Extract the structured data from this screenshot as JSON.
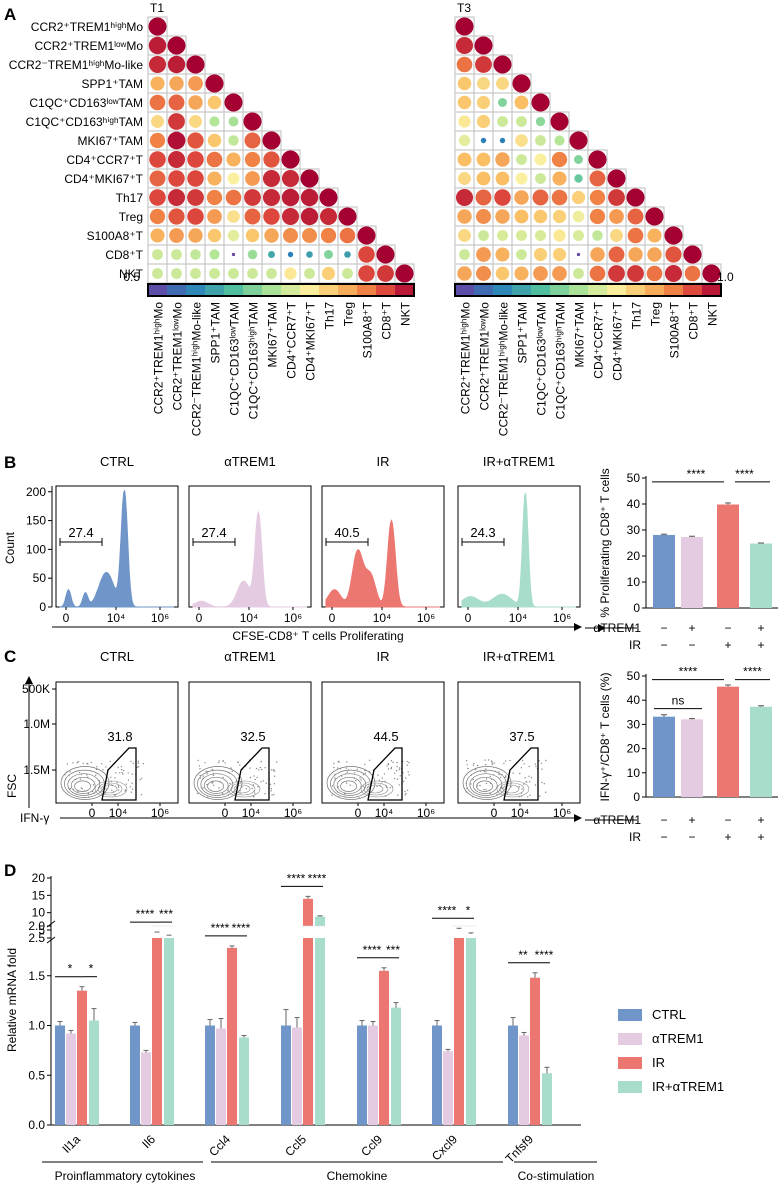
{
  "panel_letters": {
    "A": "A",
    "B": "B",
    "C": "C",
    "D": "D"
  },
  "colors": {
    "blue": "#6f95c9",
    "lilac": "#e4cbe2",
    "red": "#ec7670",
    "mint": "#a8dccb",
    "sig_mark": "#000000"
  },
  "group_labels": [
    "CTRL",
    "αTREM1",
    "IR",
    "IR+αTREM1"
  ],
  "chart_data": [
    {
      "id": "A-T1",
      "type": "heatmap",
      "title": "T1",
      "labels": [
        "CCR2⁺TREM1ʰⁱᵍʰMo",
        "CCR2⁺TREM1ˡᵒʷMo",
        "CCR2⁻TREM1ʰⁱᵍʰMo-like",
        "SPP1⁺TAM",
        "C1QC⁺CD163ˡᵒʷTAM",
        "C1QC⁺CD163ʰⁱᵍʰTAM",
        "MKI67⁺TAM",
        "CD4⁺CCR7⁺T",
        "CD4⁺MKI67⁺T",
        "Th17",
        "Treg",
        "S100A8⁺T",
        "CD8⁺T",
        "NKT"
      ],
      "colorbar_min_label": "0.5",
      "values": [
        [
          1.0
        ],
        [
          0.98,
          1.0
        ],
        [
          0.97,
          0.98,
          1.0
        ],
        [
          0.87,
          0.88,
          0.89,
          1.0
        ],
        [
          0.92,
          0.93,
          0.88,
          0.85,
          1.0
        ],
        [
          0.83,
          0.96,
          0.83,
          0.74,
          0.73,
          1.0
        ],
        [
          0.91,
          0.99,
          0.94,
          0.85,
          0.75,
          0.93,
          1.0
        ],
        [
          0.95,
          0.97,
          0.95,
          0.92,
          0.87,
          0.91,
          0.94,
          1.0
        ],
        [
          0.93,
          0.95,
          0.95,
          0.87,
          0.8,
          0.89,
          0.97,
          0.97,
          1.0
        ],
        [
          0.95,
          0.97,
          0.96,
          0.91,
          0.92,
          0.96,
          0.97,
          0.98,
          0.98,
          1.0
        ],
        [
          0.91,
          0.94,
          0.95,
          0.89,
          0.82,
          0.93,
          0.95,
          0.97,
          0.98,
          0.97,
          1.0
        ],
        [
          0.87,
          0.89,
          0.88,
          0.85,
          0.78,
          0.85,
          0.88,
          0.9,
          0.9,
          0.91,
          0.92,
          1.0
        ],
        [
          0.76,
          0.76,
          0.75,
          0.74,
          0.51,
          0.72,
          0.63,
          0.58,
          0.62,
          0.7,
          0.62,
          0.95,
          1.0
        ],
        [
          0.76,
          0.76,
          0.76,
          0.76,
          0.76,
          0.76,
          0.76,
          0.81,
          0.76,
          0.84,
          0.76,
          0.95,
          0.96,
          1.0
        ]
      ]
    },
    {
      "id": "A-T3",
      "type": "heatmap",
      "title": "T3",
      "labels": [
        "CCR2⁺TREM1ʰⁱᵍʰMo",
        "CCR2⁺TREM1ˡᵒʷMo",
        "CCR2⁻TREM1ʰⁱᵍʰMo-like",
        "SPP1⁺TAM",
        "C1QC⁺CD163ˡᵒʷTAM",
        "C1QC⁺CD163ʰⁱᵍʰTAM",
        "MKI67⁺TAM",
        "CD4⁺CCR7⁺T",
        "CD4⁺MKI67⁺T",
        "Th17",
        "Treg",
        "S100A8⁺T",
        "CD8⁺T",
        "NKT"
      ],
      "colorbar_max_label": "1.0",
      "values": [
        [
          1.0
        ],
        [
          0.97,
          1.0
        ],
        [
          0.92,
          0.96,
          1.0
        ],
        [
          0.85,
          0.83,
          0.83,
          1.0
        ],
        [
          0.85,
          0.84,
          0.7,
          0.86,
          1.0
        ],
        [
          0.81,
          0.84,
          0.76,
          0.76,
          0.71,
          1.0
        ],
        [
          0.78,
          0.58,
          0.58,
          0.82,
          0.76,
          0.74,
          1.0
        ],
        [
          0.86,
          0.86,
          0.88,
          0.76,
          0.8,
          0.91,
          0.7,
          1.0
        ],
        [
          0.83,
          0.86,
          0.86,
          0.8,
          0.76,
          0.87,
          0.68,
          0.93,
          1.0
        ],
        [
          0.97,
          0.93,
          0.95,
          0.88,
          0.93,
          0.92,
          0.84,
          0.91,
          0.96,
          1.0
        ],
        [
          0.88,
          0.9,
          0.88,
          0.86,
          0.85,
          0.84,
          0.79,
          0.91,
          0.89,
          0.93,
          1.0
        ],
        [
          0.83,
          0.76,
          0.77,
          0.77,
          0.77,
          0.81,
          0.77,
          0.75,
          0.83,
          0.92,
          0.87,
          1.0
        ],
        [
          0.76,
          0.89,
          0.87,
          0.76,
          0.84,
          0.84,
          0.51,
          0.88,
          0.93,
          0.88,
          0.88,
          0.94,
          1.0
        ],
        [
          0.88,
          0.9,
          0.85,
          0.87,
          0.89,
          0.89,
          0.76,
          0.92,
          0.96,
          0.96,
          0.92,
          0.97,
          0.92,
          1.0
        ]
      ]
    },
    {
      "id": "B-hist",
      "type": "area",
      "xlabel": "CFSE-CD8⁺ T cells Proliferating",
      "ylabel": "Count",
      "y_ticks": [
        "0",
        "50",
        "100",
        "150",
        "200"
      ],
      "ylim": [
        0,
        210
      ],
      "x_ticks": [
        "0",
        "10⁴",
        "10⁶"
      ],
      "series": [
        {
          "name": "CTRL",
          "gate_value": "27.4",
          "color": "#6f95c9",
          "peaks": [
            [
              1,
              30,
              0.12
            ],
            [
              1.8,
              24,
              0.12
            ],
            [
              3.65,
              200,
              0.15
            ],
            [
              2.8,
              60,
              0.35
            ]
          ]
        },
        {
          "name": "αTREM1",
          "gate_value": "27.4",
          "color": "#e4cbe2",
          "peaks": [
            [
              1,
              10,
              0.3
            ],
            [
              3.7,
              162,
              0.16
            ],
            [
              3.0,
              45,
              0.3
            ]
          ]
        },
        {
          "name": "IR",
          "gate_value": "40.5",
          "color": "#ec7670",
          "peaks": [
            [
              1,
              30,
              0.3
            ],
            [
              2.1,
              96,
              0.25
            ],
            [
              2.7,
              55,
              0.25
            ],
            [
              3.7,
              150,
              0.18
            ]
          ]
        },
        {
          "name": "IR+αTREM1",
          "gate_value": "24.3",
          "color": "#a8dccb",
          "peaks": [
            [
              1,
              18,
              0.4
            ],
            [
              2.5,
              22,
              0.45
            ],
            [
              3.6,
              198,
              0.13
            ]
          ]
        }
      ]
    },
    {
      "id": "B-bar",
      "type": "bar",
      "ylabel": "% Proliferating CD8⁺ T cells",
      "ylim": [
        0,
        50
      ],
      "y_ticks": [
        "0",
        "10",
        "20",
        "30",
        "40",
        "50"
      ],
      "categories": [
        "CTRL",
        "αTREM1",
        "IR",
        "IR+αTREM1"
      ],
      "values": [
        28.1,
        27.3,
        39.8,
        24.8
      ],
      "errors": [
        0.3,
        0.3,
        0.6,
        0.2
      ],
      "significance": [
        {
          "from": 0,
          "to": 2,
          "label": "****"
        },
        {
          "from": 2,
          "to": 3,
          "label": "****"
        }
      ],
      "condition_rows": [
        {
          "label": "αTREM1",
          "marks": [
            "−",
            "+",
            "−",
            "+"
          ]
        },
        {
          "label": "IR",
          "marks": [
            "−",
            "−",
            "+",
            "+"
          ]
        }
      ]
    },
    {
      "id": "C-flow",
      "type": "scatter",
      "xlabel": "IFN-γ",
      "ylabel": "FSC",
      "y_ticks": [
        "500K",
        "1.0M",
        "1.5M"
      ],
      "x_ticks": [
        "0",
        "10⁴",
        "10⁶"
      ],
      "series": [
        {
          "name": "CTRL",
          "gate_value": "31.8"
        },
        {
          "name": "αTREM1",
          "gate_value": "32.5"
        },
        {
          "name": "IR",
          "gate_value": "44.5"
        },
        {
          "name": "IR+αTREM1",
          "gate_value": "37.5"
        }
      ]
    },
    {
      "id": "C-bar",
      "type": "bar",
      "ylabel": "IFN-γ⁺/CD8⁺ T cells (%)",
      "ylim": [
        0,
        50
      ],
      "y_ticks": [
        "0",
        "10",
        "20",
        "30",
        "40",
        "50"
      ],
      "categories": [
        "CTRL",
        "αTREM1",
        "IR",
        "IR+αTREM1"
      ],
      "values": [
        33.2,
        32.1,
        45.6,
        37.3
      ],
      "errors": [
        0.8,
        0.3,
        0.7,
        0.4
      ],
      "significance": [
        {
          "from": 0,
          "to": 1,
          "label": "ns"
        },
        {
          "from": 0,
          "to": 2,
          "label": "****"
        },
        {
          "from": 2,
          "to": 3,
          "label": "****"
        }
      ],
      "condition_rows": [
        {
          "label": "αTREM1",
          "marks": [
            "−",
            "+",
            "−",
            "+"
          ]
        },
        {
          "label": "IR",
          "marks": [
            "−",
            "−",
            "+",
            "+"
          ]
        }
      ]
    },
    {
      "id": "D",
      "type": "bar",
      "ylabel": "Relative mRNA fold",
      "y_ticks_low": [
        "0.0",
        "0.5",
        "1.0",
        "1.5",
        "2.0"
      ],
      "y_ticks_high": [
        "2.5",
        "5",
        "10",
        "15",
        "20"
      ],
      "categories": [
        "Il1a",
        "Il6",
        "Ccl4",
        "Ccl5",
        "Ccl9",
        "Cxcl9",
        "Tnfsf9"
      ],
      "series": [
        {
          "name": "CTRL",
          "values": [
            1.0,
            1.0,
            1.0,
            1.0,
            1.0,
            1.0,
            1.0
          ],
          "errors": [
            0.04,
            0.03,
            0.06,
            0.16,
            0.05,
            0.05,
            0.08
          ]
        },
        {
          "name": "αTREM1",
          "values": [
            0.92,
            0.73,
            0.97,
            0.98,
            1.0,
            0.74,
            0.9
          ],
          "errors": [
            0.03,
            0.02,
            0.1,
            0.1,
            0.04,
            0.02,
            0.03
          ]
        },
        {
          "name": "IR",
          "values": [
            1.35,
            4.2,
            1.78,
            14.0,
            1.55,
            5.3,
            1.48
          ],
          "errors": [
            0.04,
            0.15,
            0.02,
            0.7,
            0.03,
            0.2,
            0.05
          ]
        },
        {
          "name": "IR+αTREM1",
          "values": [
            1.05,
            3.3,
            0.88,
            8.9,
            1.18,
            3.8,
            0.52
          ],
          "errors": [
            0.12,
            0.08,
            0.02,
            0.2,
            0.05,
            0.3,
            0.06
          ]
        }
      ],
      "significance": [
        {
          "cat": 0,
          "from": 0,
          "to": 2,
          "label": "*"
        },
        {
          "cat": 0,
          "from": 2,
          "to": 3,
          "label": "*"
        },
        {
          "cat": 1,
          "from": 0,
          "to": 2,
          "label": "****"
        },
        {
          "cat": 1,
          "from": 2,
          "to": 3,
          "label": "***"
        },
        {
          "cat": 2,
          "from": 0,
          "to": 2,
          "label": "****"
        },
        {
          "cat": 2,
          "from": 2,
          "to": 3,
          "label": "****"
        },
        {
          "cat": 3,
          "from": 0,
          "to": 2,
          "label": "****"
        },
        {
          "cat": 3,
          "from": 2,
          "to": 3,
          "label": "****"
        },
        {
          "cat": 4,
          "from": 0,
          "to": 2,
          "label": "****"
        },
        {
          "cat": 4,
          "from": 2,
          "to": 3,
          "label": "***"
        },
        {
          "cat": 5,
          "from": 0,
          "to": 2,
          "label": "****"
        },
        {
          "cat": 5,
          "from": 2,
          "to": 3,
          "label": "*"
        },
        {
          "cat": 6,
          "from": 0,
          "to": 2,
          "label": "**"
        },
        {
          "cat": 6,
          "from": 2,
          "to": 3,
          "label": "****"
        }
      ],
      "category_groups": [
        "Proinflammatory cytokines",
        "Chemokine",
        "Co-stimulation"
      ],
      "legend": [
        "CTRL",
        "αTREM1",
        "IR",
        "IR+αTREM1"
      ]
    }
  ]
}
